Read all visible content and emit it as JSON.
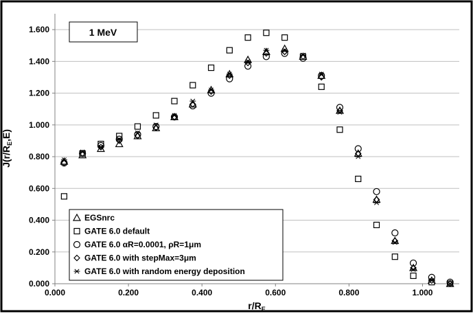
{
  "chart_data": {
    "type": "scatter",
    "annotation": "1 MeV",
    "xlabel": "r/R",
    "xlabel_sub": "E",
    "ylabel": "J(r/R",
    "ylabel_sub": "E",
    "ylabel_tail": ",E)",
    "xlim": [
      0.0,
      1.1
    ],
    "ylim": [
      0.0,
      1.7
    ],
    "xticks": [
      "0.000",
      "0.200",
      "0.400",
      "0.600",
      "0.800",
      "1.000"
    ],
    "xtick_values": [
      0.0,
      0.2,
      0.4,
      0.6,
      0.8,
      1.0
    ],
    "yticks": [
      "0.000",
      "0.200",
      "0.400",
      "0.600",
      "0.800",
      "1.000",
      "1.200",
      "1.400",
      "1.600"
    ],
    "ytick_values": [
      0.0,
      0.2,
      0.4,
      0.6,
      0.8,
      1.0,
      1.2,
      1.4,
      1.6
    ],
    "grid": "horizontal",
    "legend_position": "bottom-left",
    "x": [
      0.025,
      0.075,
      0.125,
      0.175,
      0.225,
      0.275,
      0.325,
      0.375,
      0.425,
      0.475,
      0.525,
      0.575,
      0.625,
      0.675,
      0.725,
      0.775,
      0.825,
      0.875,
      0.925,
      0.975,
      1.025,
      1.075
    ],
    "series": [
      {
        "name": "EGSnrc",
        "marker": "triangle",
        "values": [
          0.77,
          0.81,
          0.85,
          0.88,
          0.93,
          0.98,
          1.05,
          1.13,
          1.22,
          1.32,
          1.41,
          1.46,
          1.48,
          1.43,
          1.31,
          1.09,
          0.82,
          0.53,
          0.27,
          0.1,
          0.02,
          0.0
        ]
      },
      {
        "name": "GATE 6.0 default",
        "marker": "square",
        "values": [
          0.55,
          0.82,
          0.88,
          0.93,
          0.99,
          1.06,
          1.15,
          1.25,
          1.36,
          1.47,
          1.55,
          1.58,
          1.55,
          1.43,
          1.24,
          0.97,
          0.66,
          0.37,
          0.17,
          0.05,
          0.01,
          0.0
        ]
      },
      {
        "name": "GATE 6.0    αR=0.0001, ρR=1μm",
        "marker": "circle",
        "values": [
          0.76,
          0.82,
          0.87,
          0.91,
          0.94,
          0.99,
          1.05,
          1.12,
          1.2,
          1.29,
          1.37,
          1.43,
          1.45,
          1.42,
          1.31,
          1.11,
          0.85,
          0.58,
          0.32,
          0.13,
          0.04,
          0.01
        ]
      },
      {
        "name": "GATE 6.0 with stepMax=3μm",
        "marker": "diamond",
        "values": [
          0.76,
          0.82,
          0.86,
          0.9,
          0.93,
          0.98,
          1.05,
          1.13,
          1.21,
          1.31,
          1.39,
          1.45,
          1.46,
          1.43,
          1.3,
          1.09,
          0.82,
          0.53,
          0.27,
          0.1,
          0.02,
          0.0
        ]
      },
      {
        "name": "GATE 6.0 with random energy deposition",
        "marker": "asterisk",
        "values": [
          0.78,
          0.83,
          0.86,
          0.91,
          0.95,
          1.0,
          1.06,
          1.15,
          1.22,
          1.32,
          1.4,
          1.47,
          1.47,
          1.44,
          1.32,
          1.08,
          0.8,
          0.51,
          0.26,
          0.09,
          0.02,
          0.0
        ]
      }
    ]
  }
}
